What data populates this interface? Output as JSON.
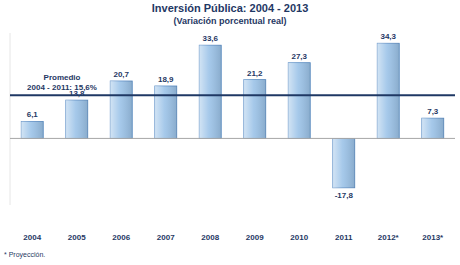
{
  "chart_data": {
    "type": "bar",
    "title": "Inversión Pública: 2004 - 2013",
    "subtitle": "(Variación porcentual real)",
    "categories": [
      "2004",
      "2005",
      "2006",
      "2007",
      "2008",
      "2009",
      "2010",
      "2011",
      "2012*",
      "2013*"
    ],
    "values": [
      6.1,
      13.8,
      20.7,
      18.9,
      33.6,
      21.2,
      27.3,
      -17.8,
      34.3,
      7.3
    ],
    "value_labels": [
      "6,1",
      "13,8",
      "20,7",
      "18,9",
      "33,6",
      "21,2",
      "27,3",
      "-17,8",
      "34,3",
      "7,3"
    ],
    "color": "#9cc3e8",
    "ylim": [
      -24,
      38
    ],
    "yticks": [
      0
    ],
    "grid": false,
    "tick_labels": "x",
    "data_labels": true,
    "average": {
      "value": 15.6,
      "color": "#1f3864",
      "label_lines": [
        "Promedio",
        "2004 - 2011: 15,6%"
      ]
    },
    "note": "* Proyección."
  }
}
